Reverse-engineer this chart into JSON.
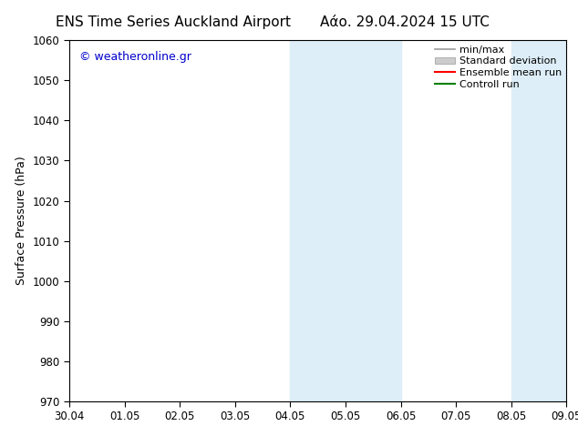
{
  "title_left": "ENS Time Series Auckland Airport",
  "title_right": "Αάο. 29.04.2024 15 UTC",
  "ylabel": "Surface Pressure (hPa)",
  "ylim": [
    970,
    1060
  ],
  "yticks": [
    970,
    980,
    990,
    1000,
    1010,
    1020,
    1030,
    1040,
    1050,
    1060
  ],
  "xtick_labels": [
    "30.04",
    "01.05",
    "02.05",
    "03.05",
    "04.05",
    "05.05",
    "06.05",
    "07.05",
    "08.05",
    "09.05"
  ],
  "xlim": [
    0,
    9
  ],
  "shaded_regions": [
    {
      "xmin": 4,
      "xmax": 6,
      "color": "#ddeef8"
    },
    {
      "xmin": 8,
      "xmax": 9,
      "color": "#ddeef8"
    }
  ],
  "watermark_text": "© weatheronline.gr",
  "watermark_color": "#0000cc",
  "legend_items": [
    {
      "label": "min/max",
      "color": "#aaaaaa",
      "style": "line"
    },
    {
      "label": "Standard deviation",
      "color": "#cccccc",
      "style": "bar"
    },
    {
      "label": "Ensemble mean run",
      "color": "#ff0000",
      "style": "line"
    },
    {
      "label": "Controll run",
      "color": "#008000",
      "style": "line"
    }
  ],
  "bg_color": "#ffffff",
  "border_color": "#000000",
  "title_fontsize": 11,
  "label_fontsize": 9,
  "tick_fontsize": 8.5,
  "watermark_fontsize": 9,
  "legend_fontsize": 8
}
